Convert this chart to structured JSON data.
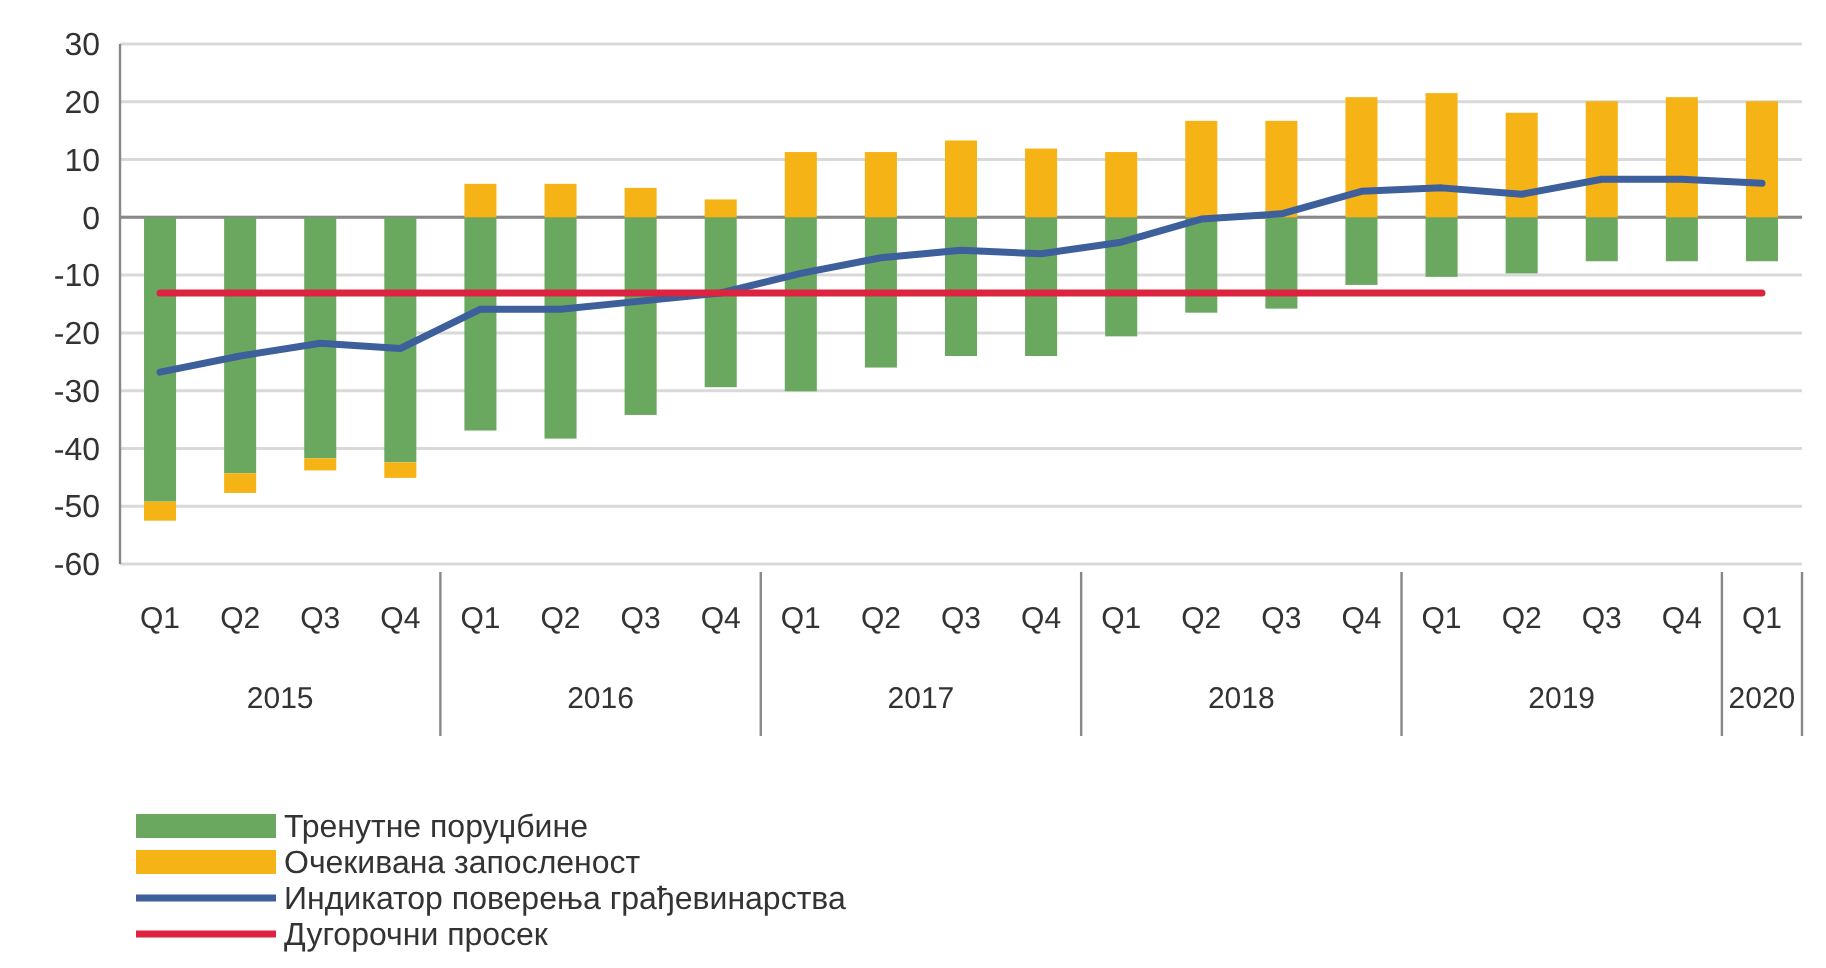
{
  "chart_data": {
    "type": "bar",
    "stacked": true,
    "categories": [
      "Q1",
      "Q2",
      "Q3",
      "Q4",
      "Q1",
      "Q2",
      "Q3",
      "Q4",
      "Q1",
      "Q2",
      "Q3",
      "Q4",
      "Q1",
      "Q2",
      "Q3",
      "Q4",
      "Q1",
      "Q2",
      "Q3",
      "Q4",
      "Q1"
    ],
    "series": [
      {
        "name": "Тренутне поруџбине",
        "color": "#6aa85f",
        "values": [
          -49.2,
          -44.3,
          -41.7,
          -42.4,
          -36.9,
          -38.3,
          -34.2,
          -29.4,
          -30.1,
          -26.0,
          -24.0,
          -24.0,
          -20.6,
          -16.5,
          -15.8,
          -11.7,
          -10.3,
          -9.7,
          -7.6,
          -7.6,
          -7.6
        ]
      },
      {
        "name": "Очекивана запосленост",
        "color": "#f5b315",
        "values": [
          -3.3,
          -3.4,
          -2.1,
          -2.7,
          5.8,
          5.8,
          5.1,
          3.1,
          11.3,
          11.3,
          13.3,
          11.9,
          11.3,
          16.7,
          16.7,
          20.8,
          21.5,
          18.1,
          20.1,
          20.8,
          20.1
        ]
      },
      {
        "name": "Индикатор поверења грађевинарства",
        "type": "line",
        "color": "#3d5f9b",
        "values": [
          -26.8,
          -24.0,
          -21.8,
          -22.7,
          -15.9,
          -15.9,
          -14.5,
          -13.1,
          -9.7,
          -7.0,
          -5.7,
          -6.3,
          -4.3,
          -0.3,
          0.6,
          4.5,
          5.1,
          4.0,
          6.6,
          6.6,
          5.9
        ]
      },
      {
        "name": "Дугорочни просек",
        "type": "line",
        "color": "#dc2440",
        "values": [
          -13.1,
          -13.1,
          -13.1,
          -13.1,
          -13.1,
          -13.1,
          -13.1,
          -13.1,
          -13.1,
          -13.1,
          -13.1,
          -13.1,
          -13.1,
          -13.1,
          -13.1,
          -13.1,
          -13.1,
          -13.1,
          -13.1,
          -13.1,
          -13.1
        ]
      }
    ],
    "annotations": [
      "2015",
      "2016",
      "2017",
      "2018",
      "2019",
      "2020"
    ],
    "ylim": [
      -60,
      30
    ],
    "yticks": [
      -60,
      -50,
      -40,
      -30,
      -20,
      -10,
      0,
      10,
      20,
      30
    ],
    "grid": "y",
    "legend": "bottom left",
    "marker": "none",
    "line_style": "solid"
  }
}
